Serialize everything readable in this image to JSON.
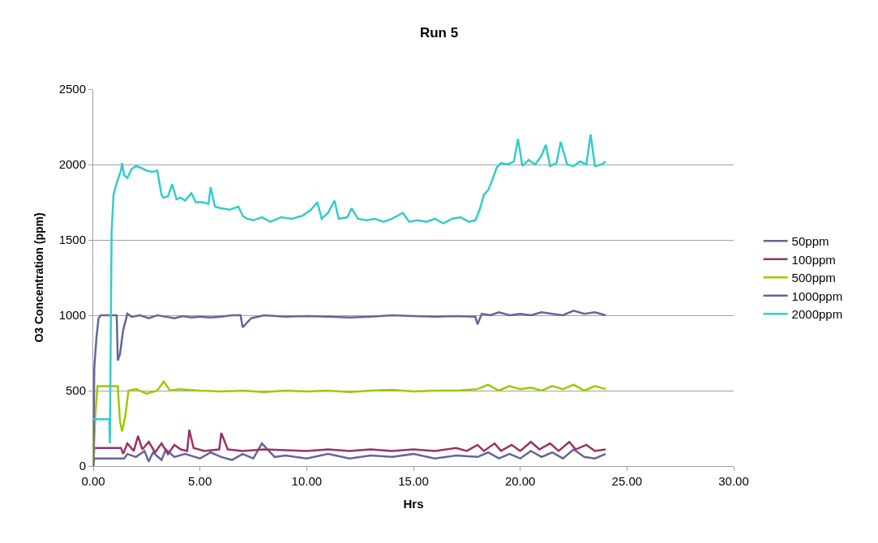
{
  "chart_data": {
    "type": "line",
    "title": "Run 5",
    "xlabel": "Hrs",
    "ylabel": "O3 Concentration (ppm)",
    "xlim": [
      0,
      30
    ],
    "xticks": [
      {
        "value": 0,
        "label": "0.00"
      },
      {
        "value": 5,
        "label": "5.00"
      },
      {
        "value": 10,
        "label": "10.00"
      },
      {
        "value": 15,
        "label": "15.00"
      },
      {
        "value": 20,
        "label": "20.00"
      },
      {
        "value": 25,
        "label": "25.00"
      },
      {
        "value": 30,
        "label": "30.00"
      }
    ],
    "ylim": [
      0,
      2500
    ],
    "yticks": [
      0,
      500,
      1000,
      1500,
      2000,
      2500
    ],
    "grid": "y",
    "legend": "right",
    "marker": "none",
    "line_style": "solid",
    "series": [
      {
        "name": "50ppm",
        "color": "#666699",
        "x": [
          0,
          0.05,
          1.45,
          1.6,
          2.0,
          2.4,
          2.6,
          2.8,
          3.2,
          3.4,
          3.8,
          4.3,
          5,
          5.5,
          6,
          6.5,
          7,
          7.5,
          7.9,
          8.5,
          9,
          10,
          11,
          12,
          13,
          14,
          15,
          16,
          17,
          18,
          18.5,
          19,
          19.5,
          20,
          20.5,
          21,
          21.5,
          22,
          22.5,
          23,
          23.5,
          24
        ],
        "values": [
          0,
          50,
          50,
          80,
          60,
          100,
          30,
          90,
          40,
          110,
          60,
          80,
          50,
          90,
          60,
          40,
          80,
          50,
          150,
          60,
          70,
          50,
          80,
          50,
          70,
          60,
          80,
          50,
          70,
          60,
          90,
          50,
          80,
          50,
          100,
          60,
          90,
          50,
          110,
          60,
          50,
          80
        ]
      },
      {
        "name": "100ppm",
        "color": "#993366",
        "x": [
          0,
          0.05,
          1.3,
          1.4,
          1.6,
          1.9,
          2.1,
          2.3,
          2.6,
          2.9,
          3.2,
          3.5,
          3.8,
          4.1,
          4.4,
          4.5,
          4.7,
          5.2,
          5.9,
          6.0,
          6.3,
          7,
          8,
          9,
          10,
          11,
          12,
          13,
          14,
          15,
          16,
          17,
          17.5,
          18,
          18.3,
          18.8,
          19.1,
          19.6,
          20,
          20.5,
          20.9,
          21.4,
          21.8,
          22.3,
          22.6,
          23.1,
          23.5,
          24
        ],
        "values": [
          0,
          120,
          120,
          80,
          150,
          100,
          200,
          110,
          160,
          90,
          150,
          80,
          140,
          110,
          100,
          240,
          120,
          100,
          110,
          220,
          110,
          100,
          110,
          105,
          100,
          110,
          100,
          110,
          100,
          110,
          100,
          120,
          100,
          140,
          100,
          150,
          100,
          140,
          100,
          160,
          110,
          150,
          100,
          160,
          110,
          140,
          100,
          110
        ]
      },
      {
        "name": "500ppm",
        "color": "#99cc00",
        "x": [
          0,
          0.1,
          0.2,
          1.15,
          1.25,
          1.35,
          1.5,
          1.65,
          2.0,
          2.5,
          3.0,
          3.3,
          3.6,
          4.0,
          5,
          6,
          7,
          8,
          9,
          10,
          11,
          12,
          13,
          14,
          15,
          16,
          17,
          18,
          18.5,
          19,
          19.5,
          20,
          20.5,
          21,
          21.5,
          22,
          22.5,
          23,
          23.5,
          24
        ],
        "values": [
          0,
          350,
          530,
          530,
          300,
          230,
          330,
          500,
          510,
          480,
          500,
          560,
          500,
          510,
          500,
          495,
          500,
          490,
          500,
          495,
          500,
          490,
          500,
          505,
          495,
          500,
          500,
          510,
          540,
          500,
          530,
          510,
          520,
          500,
          530,
          510,
          540,
          500,
          530,
          510
        ]
      },
      {
        "name": "1000ppm",
        "color": "#666699",
        "x": [
          0,
          0.05,
          0.15,
          0.25,
          0.35,
          1.1,
          1.15,
          1.25,
          1.4,
          1.6,
          1.8,
          2.2,
          2.6,
          3.0,
          3.4,
          3.8,
          4.2,
          4.6,
          5.0,
          5.5,
          6.0,
          6.5,
          6.9,
          7.0,
          7.4,
          8,
          9,
          10,
          11,
          12,
          13,
          14,
          15,
          16,
          17,
          17.9,
          18.0,
          18.2,
          18.6,
          19,
          19.5,
          20,
          20.5,
          21,
          21.5,
          22,
          22.5,
          23,
          23.5,
          24
        ],
        "values": [
          0,
          650,
          850,
          980,
          1000,
          1000,
          700,
          740,
          900,
          1010,
          990,
          1000,
          980,
          1000,
          990,
          980,
          995,
          985,
          990,
          985,
          990,
          1000,
          1000,
          920,
          980,
          1000,
          990,
          995,
          990,
          985,
          990,
          1000,
          995,
          990,
          995,
          990,
          940,
          1010,
          1000,
          1020,
          1000,
          1010,
          1000,
          1020,
          1010,
          1000,
          1030,
          1010,
          1020,
          1000
        ]
      },
      {
        "name": "2000ppm",
        "color": "#33cccc",
        "x": [
          0,
          0.75,
          0.78,
          0.86,
          0.95,
          1.05,
          1.15,
          1.3,
          1.35,
          1.45,
          1.6,
          1.8,
          2.0,
          2.2,
          2.5,
          2.8,
          3.0,
          3.2,
          3.3,
          3.5,
          3.7,
          3.9,
          4.1,
          4.3,
          4.6,
          4.8,
          5.1,
          5.4,
          5.5,
          5.7,
          6.0,
          6.4,
          6.8,
          7.0,
          7.2,
          7.5,
          7.9,
          8.3,
          8.8,
          9.3,
          9.8,
          10.2,
          10.5,
          10.7,
          11.0,
          11.3,
          11.5,
          11.9,
          12.1,
          12.4,
          12.8,
          13.2,
          13.6,
          14.0,
          14.5,
          14.8,
          15.2,
          15.6,
          16.0,
          16.4,
          16.8,
          17.2,
          17.6,
          17.9,
          18.1,
          18.3,
          18.5,
          18.7,
          18.9,
          19.1,
          19.4,
          19.7,
          19.9,
          20.1,
          20.4,
          20.7,
          21.0,
          21.2,
          21.4,
          21.7,
          21.9,
          22.2,
          22.5,
          22.8,
          23.1,
          23.3,
          23.5,
          23.8,
          24.0
        ],
        "values": [
          310,
          310,
          150,
          1550,
          1800,
          1850,
          1900,
          1960,
          2010,
          1930,
          1910,
          1970,
          1990,
          1980,
          1960,
          1950,
          1960,
          1800,
          1780,
          1790,
          1870,
          1770,
          1780,
          1760,
          1810,
          1750,
          1750,
          1740,
          1850,
          1720,
          1710,
          1700,
          1720,
          1660,
          1640,
          1630,
          1650,
          1620,
          1650,
          1640,
          1660,
          1700,
          1750,
          1640,
          1680,
          1760,
          1640,
          1650,
          1710,
          1640,
          1630,
          1640,
          1620,
          1640,
          1680,
          1620,
          1630,
          1620,
          1640,
          1610,
          1640,
          1650,
          1620,
          1630,
          1700,
          1800,
          1830,
          1900,
          1980,
          2010,
          2000,
          2020,
          2170,
          1990,
          2030,
          2000,
          2060,
          2130,
          1990,
          2010,
          2150,
          2000,
          1990,
          2020,
          2000,
          2200,
          1990,
          2000,
          2020
        ]
      }
    ]
  }
}
